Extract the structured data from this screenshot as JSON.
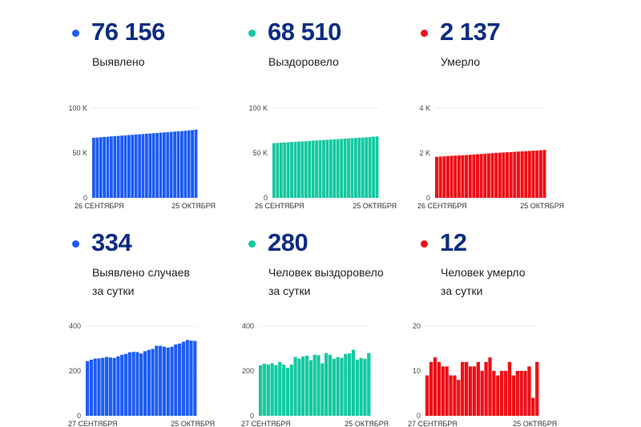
{
  "colors": {
    "blue": "#1d5cf5",
    "teal": "#13c9a0",
    "red": "#f00f16",
    "number": "#0d2c82"
  },
  "panels": [
    {
      "id": "total-cases",
      "value": "76 156",
      "label_lines": [
        "Выявлено"
      ],
      "color_key": "blue"
    },
    {
      "id": "total-recovered",
      "value": "68 510",
      "label_lines": [
        "Выздоровело"
      ],
      "color_key": "teal"
    },
    {
      "id": "total-deaths",
      "value": "2 137",
      "label_lines": [
        "Умерло"
      ],
      "color_key": "red"
    },
    {
      "id": "daily-cases",
      "value": "334",
      "label_lines": [
        "Выявлено случаев",
        "за сутки"
      ],
      "color_key": "blue"
    },
    {
      "id": "daily-recovered",
      "value": "280",
      "label_lines": [
        "Человек выздоровело",
        "за сутки"
      ],
      "color_key": "teal"
    },
    {
      "id": "daily-deaths",
      "value": "12",
      "label_lines": [
        "Человек умерло",
        "за сутки"
      ],
      "color_key": "red"
    }
  ],
  "chart_data": [
    {
      "type": "bar",
      "title": "Выявлено",
      "color_key": "blue",
      "ylim": [
        0,
        100000
      ],
      "yticks": [
        0,
        50000,
        100000
      ],
      "ytick_labels": [
        "0",
        "50 K",
        "100 K"
      ],
      "x_start_label": "26 СЕНТЯБРЯ",
      "x_end_label": "25 ОКТЯБРЯ",
      "values": [
        67000,
        67300,
        67600,
        67900,
        68200,
        68500,
        68800,
        69100,
        69400,
        69700,
        70000,
        70300,
        70600,
        70900,
        71200,
        71500,
        71800,
        72100,
        72400,
        72700,
        73000,
        73300,
        73600,
        73900,
        74200,
        74500,
        74800,
        75200,
        75600,
        76156
      ]
    },
    {
      "type": "bar",
      "title": "Выздоровело",
      "color_key": "teal",
      "ylim": [
        0,
        100000
      ],
      "yticks": [
        0,
        50000,
        100000
      ],
      "ytick_labels": [
        "0",
        "50 K",
        "100 K"
      ],
      "x_start_label": "26 СЕНТЯБРЯ",
      "x_end_label": "25 ОКТЯБРЯ",
      "values": [
        61000,
        61250,
        61500,
        61750,
        62000,
        62250,
        62500,
        62750,
        63000,
        63250,
        63500,
        63750,
        64000,
        64250,
        64500,
        64750,
        65000,
        65250,
        65500,
        65750,
        66000,
        66250,
        66500,
        66750,
        67000,
        67250,
        67500,
        67800,
        68200,
        68510
      ]
    },
    {
      "type": "bar",
      "title": "Умерло",
      "color_key": "red",
      "ylim": [
        0,
        4000
      ],
      "yticks": [
        0,
        2000,
        4000
      ],
      "ytick_labels": [
        "0",
        "2 K",
        "4 K"
      ],
      "x_start_label": "26 СЕНТЯБРЯ",
      "x_end_label": "25 ОКТЯБРЯ",
      "values": [
        1830,
        1842,
        1855,
        1866,
        1877,
        1886,
        1895,
        1903,
        1911,
        1923,
        1935,
        1946,
        1957,
        1969,
        1979,
        1991,
        2004,
        2014,
        2023,
        2033,
        2043,
        2055,
        2064,
        2074,
        2084,
        2094,
        2105,
        2109,
        2125,
        2137
      ]
    },
    {
      "type": "bar",
      "title": "Выявлено случаев за сутки",
      "color_key": "blue",
      "ylim": [
        0,
        400
      ],
      "yticks": [
        0,
        200,
        400
      ],
      "ytick_labels": [
        "0",
        "200",
        "400"
      ],
      "x_start_label": "27 СЕНТЯБРЯ",
      "x_end_label": "25 ОКТЯБРЯ",
      "values": [
        243,
        250,
        255,
        256,
        258,
        262,
        260,
        258,
        265,
        272,
        276,
        283,
        285,
        284,
        278,
        288,
        294,
        298,
        312,
        312,
        308,
        304,
        308,
        318,
        322,
        330,
        338,
        335,
        334
      ]
    },
    {
      "type": "bar",
      "title": "Человек выздоровело за сутки",
      "color_key": "teal",
      "ylim": [
        0,
        400
      ],
      "yticks": [
        0,
        200,
        400
      ],
      "ytick_labels": [
        "0",
        "200",
        "400"
      ],
      "x_start_label": "27 СЕНТЯБРЯ",
      "x_end_label": "25 ОКТЯБРЯ",
      "values": [
        225,
        232,
        228,
        234,
        226,
        240,
        228,
        214,
        228,
        262,
        255,
        264,
        268,
        248,
        272,
        270,
        234,
        280,
        272,
        254,
        262,
        258,
        276,
        278,
        294,
        250,
        258,
        254,
        280
      ]
    },
    {
      "type": "bar",
      "title": "Человек умерло за сутки",
      "color_key": "red",
      "ylim": [
        0,
        20
      ],
      "yticks": [
        0,
        10,
        20
      ],
      "ytick_labels": [
        "0",
        "10",
        "20"
      ],
      "x_start_label": "27 СЕНТЯБРЯ",
      "x_end_label": "25 ОКТЯБРЯ",
      "values": [
        9,
        12,
        13,
        12,
        11,
        11,
        9,
        9,
        8,
        12,
        12,
        11,
        11,
        12,
        10,
        12,
        13,
        10,
        9,
        10,
        10,
        12,
        9,
        10,
        10,
        10,
        11,
        4,
        12
      ]
    }
  ]
}
